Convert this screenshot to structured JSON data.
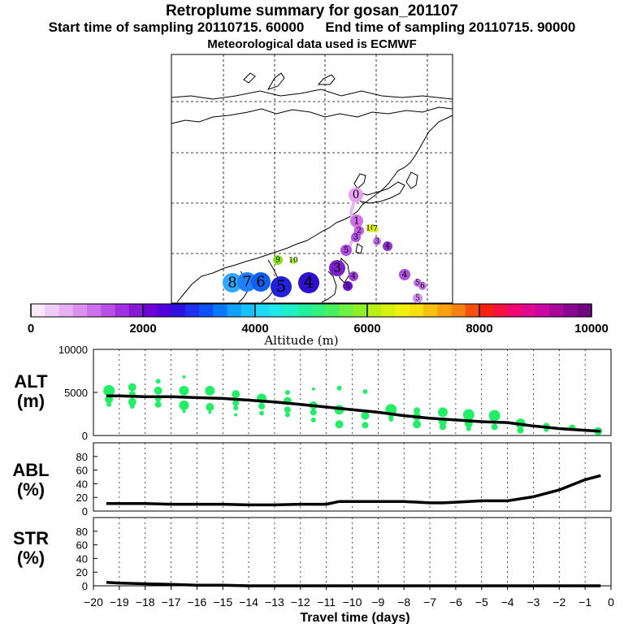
{
  "header": {
    "title": "Retroplume summary for gosan_201107",
    "start_time": "Start time of sampling 20110715. 60000",
    "end_time": "End time of sampling 20110715. 90000",
    "met_data": "Meteorological data used is ECMWF"
  },
  "map_labels": [
    {
      "t": "0",
      "c": "#e8a0f0"
    },
    {
      "t": "1",
      "c": "#d070e8"
    },
    {
      "t": "2",
      "c": "#c060e0"
    },
    {
      "t": "3",
      "c": "#b050e0"
    },
    {
      "t": "3",
      "c": "#c070e8"
    },
    {
      "t": "4",
      "c": "#9030d0"
    },
    {
      "t": "5",
      "c": "#b050e0"
    },
    {
      "t": "3",
      "c": "#7a20c8"
    },
    {
      "t": "4",
      "c": "#a040d8"
    },
    {
      "t": "5",
      "c": "#6a10c8"
    },
    {
      "t": "4",
      "c": "#b050e0"
    },
    {
      "t": "5",
      "c": "#c870e8"
    },
    {
      "t": "6",
      "c": "#c870e8"
    },
    {
      "t": "5",
      "c": "#d090f0"
    },
    {
      "t": "9",
      "c": "#88dd22"
    },
    {
      "t": "10",
      "c": "#aaee33"
    },
    {
      "t": "10",
      "c": "#ddee22"
    },
    {
      "t": "7",
      "c": "#ddee22"
    },
    {
      "t": "8",
      "c": "#30a8ff"
    },
    {
      "t": "7",
      "c": "#2080ff"
    },
    {
      "t": "6",
      "c": "#1060f0"
    },
    {
      "t": "5",
      "c": "#2020dd"
    },
    {
      "t": "4",
      "c": "#3010cc"
    }
  ],
  "colorbar": {
    "ticks": [
      "0",
      "2000",
      "4000",
      "6000",
      "8000",
      "10000"
    ],
    "label": "Altitude (m)",
    "colors": [
      "#f8e8f8",
      "#f0ccf8",
      "#e8b0f4",
      "#dc90f0",
      "#cc70ec",
      "#b850e8",
      "#a030e0",
      "#8818d8",
      "#7000d8",
      "#5000d8",
      "#3010e0",
      "#2030f0",
      "#1050f8",
      "#0878ff",
      "#10a0ff",
      "#18c0ff",
      "#20d8f8",
      "#20e8e8",
      "#20f0c8",
      "#20f0a0",
      "#30f080",
      "#48f060",
      "#70f040",
      "#90f028",
      "#b8f018",
      "#d8f010",
      "#f0f010",
      "#f8e010",
      "#f8c010",
      "#f8a010",
      "#f88010",
      "#f85010",
      "#f82010",
      "#f81040",
      "#f00870",
      "#e00890",
      "#c808a0",
      "#a8089c",
      "#880890",
      "#700880"
    ]
  },
  "chart_data": [
    {
      "type": "scatter",
      "name": "ALT",
      "ylabel": "ALT (m)",
      "ylabel_top": "ALT",
      "ylabel_unit": "(m)",
      "ylim": [
        0,
        10000
      ],
      "yticks": [
        "0",
        "5000",
        "10000"
      ],
      "xlim": [
        -20,
        0
      ],
      "median_line": {
        "x": [
          -19.5,
          -19,
          -18,
          -17,
          -16,
          -15,
          -14,
          -13,
          -12,
          -11,
          -10,
          -9,
          -8,
          -7,
          -6,
          -5,
          -4,
          -3,
          -2,
          -1,
          -0.4
        ],
        "y": [
          4600,
          4600,
          4500,
          4500,
          4400,
          4300,
          4100,
          3900,
          3600,
          3300,
          3000,
          2700,
          2300,
          2000,
          1800,
          1600,
          1500,
          1100,
          800,
          600,
          500
        ]
      },
      "points": [
        [
          -19.4,
          5200,
          7
        ],
        [
          -19.4,
          4200,
          5
        ],
        [
          -19.4,
          3600,
          3
        ],
        [
          -18.5,
          5600,
          5
        ],
        [
          -18.5,
          4800,
          4
        ],
        [
          -18.5,
          3900,
          5
        ],
        [
          -18.5,
          3400,
          3
        ],
        [
          -17.5,
          6300,
          3
        ],
        [
          -17.5,
          5200,
          5
        ],
        [
          -17.5,
          4300,
          4
        ],
        [
          -17.5,
          3600,
          4
        ],
        [
          -16.5,
          6800,
          2
        ],
        [
          -16.5,
          5200,
          6
        ],
        [
          -16.5,
          3500,
          6
        ],
        [
          -16.5,
          2800,
          2
        ],
        [
          -15.5,
          5200,
          6
        ],
        [
          -15.5,
          3300,
          5
        ],
        [
          -15.5,
          2700,
          2
        ],
        [
          -14.5,
          4800,
          5
        ],
        [
          -14.5,
          3800,
          4
        ],
        [
          -14.5,
          3200,
          3
        ],
        [
          -14.5,
          2400,
          2
        ],
        [
          -13.5,
          4300,
          6
        ],
        [
          -13.5,
          3400,
          4
        ],
        [
          -13.5,
          2600,
          3
        ],
        [
          -12.5,
          5000,
          3
        ],
        [
          -12.5,
          4000,
          5
        ],
        [
          -12.5,
          3000,
          4
        ],
        [
          -12.5,
          2400,
          3
        ],
        [
          -11.5,
          5400,
          2
        ],
        [
          -11.5,
          3500,
          5
        ],
        [
          -11.5,
          2700,
          4
        ],
        [
          -11.5,
          1800,
          3
        ],
        [
          -10.5,
          5500,
          3
        ],
        [
          -10.5,
          3000,
          6
        ],
        [
          -10.5,
          1300,
          5
        ],
        [
          -9.5,
          5100,
          3
        ],
        [
          -9.5,
          2300,
          5
        ],
        [
          -9.5,
          1200,
          4
        ],
        [
          -8.5,
          3000,
          7
        ],
        [
          -8.5,
          2200,
          3
        ],
        [
          -8.5,
          1900,
          3
        ],
        [
          -7.5,
          2900,
          4
        ],
        [
          -7.5,
          2200,
          5
        ],
        [
          -7.5,
          1300,
          5
        ],
        [
          -6.5,
          2700,
          6
        ],
        [
          -6.5,
          1600,
          5
        ],
        [
          -6.5,
          1000,
          4
        ],
        [
          -5.5,
          2400,
          7
        ],
        [
          -5.5,
          1400,
          5
        ],
        [
          -5.5,
          800,
          3
        ],
        [
          -4.5,
          2300,
          7
        ],
        [
          -4.5,
          1000,
          4
        ],
        [
          -3.5,
          1400,
          6
        ],
        [
          -3.5,
          600,
          4
        ],
        [
          -2.5,
          1100,
          4
        ],
        [
          -2.5,
          700,
          3
        ],
        [
          -1.5,
          900,
          4
        ],
        [
          -0.5,
          500,
          5
        ]
      ]
    },
    {
      "type": "line",
      "name": "ABL",
      "ylabel": "ABL (%)",
      "ylabel_top": "ABL",
      "ylabel_unit": "(%)",
      "ylim": [
        0,
        100
      ],
      "yticks": [
        "0",
        "20",
        "40",
        "60",
        "80"
      ],
      "x": [
        -19.5,
        -18,
        -17,
        -16,
        -15,
        -14,
        -13,
        -12,
        -11,
        -10.5,
        -10,
        -9,
        -8,
        -7,
        -6.5,
        -6,
        -5,
        -4,
        -3,
        -2,
        -1,
        -0.4
      ],
      "values": [
        11,
        11,
        10,
        10,
        10,
        9,
        9,
        10,
        10,
        14,
        14,
        14,
        14,
        12,
        12,
        13,
        15,
        15,
        21,
        31,
        46,
        52
      ]
    },
    {
      "type": "line",
      "name": "STR",
      "ylabel": "STR (%)",
      "ylabel_top": "STR",
      "ylabel_unit": "(%)",
      "ylim": [
        0,
        100
      ],
      "yticks": [
        "0",
        "20",
        "40",
        "60",
        "80"
      ],
      "x": [
        -19.5,
        -19,
        -18,
        -17,
        -16,
        -15,
        -14,
        -0.4
      ],
      "values": [
        5,
        4,
        3,
        2,
        1,
        1,
        0,
        0
      ],
      "xlabel": "Travel time (days)",
      "xticks": [
        "−20",
        "−19",
        "−18",
        "−17",
        "−16",
        "−15",
        "−14",
        "−13",
        "−12",
        "−11",
        "−10",
        "−9",
        "−8",
        "−7",
        "−6",
        "−5",
        "−4",
        "−3",
        "−2",
        "−1",
        "0"
      ]
    }
  ]
}
